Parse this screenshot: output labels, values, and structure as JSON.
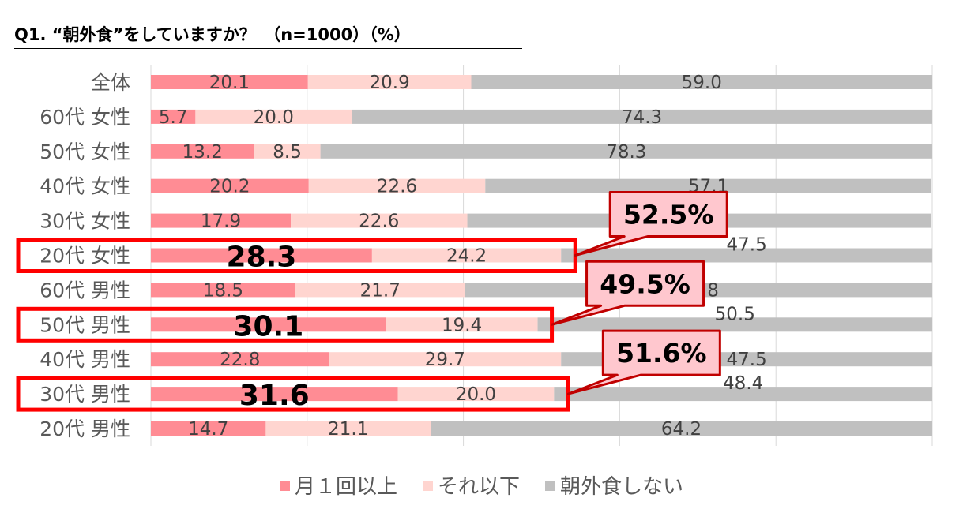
{
  "title": "Q1. “朝外食”をしていますか？　（n=1000）（%）",
  "colors": {
    "monthly": "#FF8C94",
    "less": "#FFD5D0",
    "none": "#C0C0C0",
    "highlight": "#FF0000",
    "callout_fill": "#FFC7CE",
    "callout_border": "#C00000"
  },
  "chart_data": {
    "type": "bar",
    "stacked": true,
    "orientation": "horizontal",
    "xlim": [
      0,
      100
    ],
    "grid": true,
    "legend_position": "bottom",
    "categories": [
      "全体",
      "60代 女性",
      "50代 女性",
      "40代 女性",
      "30代 女性",
      "20代 女性",
      "60代 男性",
      "50代 男性",
      "40代 男性",
      "30代 男性",
      "20代 男性"
    ],
    "series": [
      {
        "name": "月１回以上",
        "values": [
          20.1,
          5.7,
          13.2,
          20.2,
          17.9,
          28.3,
          18.5,
          30.1,
          22.8,
          31.6,
          14.7
        ]
      },
      {
        "name": "それ以下",
        "values": [
          20.9,
          20.0,
          8.5,
          22.6,
          22.6,
          24.2,
          21.7,
          19.4,
          29.7,
          20.0,
          21.1
        ]
      },
      {
        "name": "朝外食しない",
        "values": [
          59.0,
          74.3,
          78.3,
          57.1,
          59.4,
          47.5,
          59.8,
          50.5,
          47.5,
          48.4,
          64.2
        ]
      }
    ],
    "highlights": [
      {
        "category": "20代 女性",
        "callout": "52.5%"
      },
      {
        "category": "50代 男性",
        "callout": "49.5%"
      },
      {
        "category": "30代 男性",
        "callout": "51.6%"
      }
    ]
  }
}
